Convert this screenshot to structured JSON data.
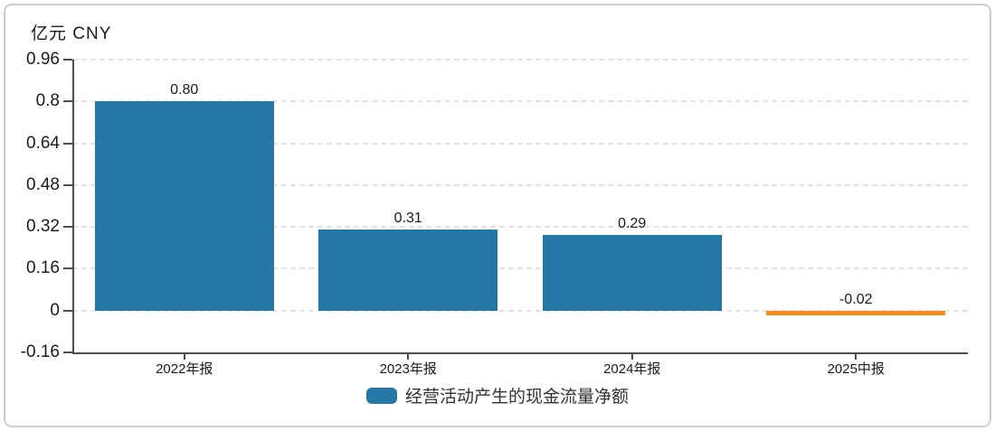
{
  "chart": {
    "title": "亿元 CNY",
    "legend": {
      "label": "经营活动产生的现金流量净额",
      "swatch_color": "#2577a6"
    },
    "colors": {
      "bar_positive": "#2577a6",
      "bar_negative": "#f78c1e",
      "axis": "#4d4d4d",
      "grid": "#e2e2e2",
      "text": "#1a1a1a",
      "frame_border": "#cdcdcd"
    }
  },
  "chart_data": {
    "type": "bar",
    "title": "亿元 CNY",
    "categories": [
      "2022年报",
      "2023年报",
      "2024年报",
      "2025中报"
    ],
    "series": [
      {
        "name": "经营活动产生的现金流量净额",
        "values": [
          0.8,
          0.31,
          0.29,
          -0.02
        ],
        "value_labels": [
          "0.80",
          "0.31",
          "0.29",
          "-0.02"
        ],
        "bar_colors": [
          "#2577a6",
          "#2577a6",
          "#2577a6",
          "#f78c1e"
        ]
      }
    ],
    "xlabel": "",
    "ylabel": "亿元 CNY",
    "ylim": [
      -0.16,
      0.96
    ],
    "yticks": [
      0.96,
      0.8,
      0.64,
      0.48,
      0.32,
      0.16,
      0,
      -0.16
    ],
    "ytick_labels": [
      "0.96",
      "0.8",
      "0.64",
      "0.48",
      "0.32",
      "0.16",
      "0",
      "-0.16"
    ],
    "grid": true,
    "grid_style": "dashed",
    "legend_position": "bottom"
  }
}
